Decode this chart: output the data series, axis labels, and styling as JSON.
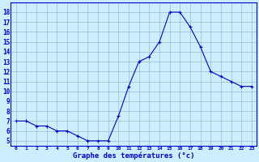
{
  "hours": [
    0,
    1,
    2,
    3,
    4,
    5,
    6,
    7,
    8,
    9,
    10,
    11,
    12,
    13,
    14,
    15,
    16,
    17,
    18,
    19,
    20,
    21,
    22,
    23
  ],
  "temps": [
    7,
    7,
    6.5,
    6.5,
    6,
    6,
    5.5,
    5,
    5,
    5,
    7.5,
    10.5,
    13,
    13.5,
    15,
    18,
    18,
    16.5,
    14.5,
    12,
    11.5,
    11,
    10.5,
    10.5
  ],
  "line_color": "#0000cc",
  "marker": "+",
  "bg_color": "#cceeff",
  "grid_color": "#99bbcc",
  "xlabel": "Graphe des températures (°c)",
  "ylabel_ticks": [
    5,
    6,
    7,
    8,
    9,
    10,
    11,
    12,
    13,
    14,
    15,
    16,
    17,
    18
  ],
  "ylim": [
    4.5,
    19.0
  ],
  "xlim": [
    -0.5,
    23.5
  ],
  "xtick_labels": [
    "0",
    "1",
    "2",
    "3",
    "4",
    "5",
    "6",
    "7",
    "8",
    "9",
    "10",
    "11",
    "12",
    "13",
    "14",
    "15",
    "16",
    "17",
    "18",
    "19",
    "20",
    "21",
    "22",
    "23"
  ],
  "axis_label_color": "#0000cc",
  "tick_color": "#0000cc",
  "border_color": "#0000cc"
}
